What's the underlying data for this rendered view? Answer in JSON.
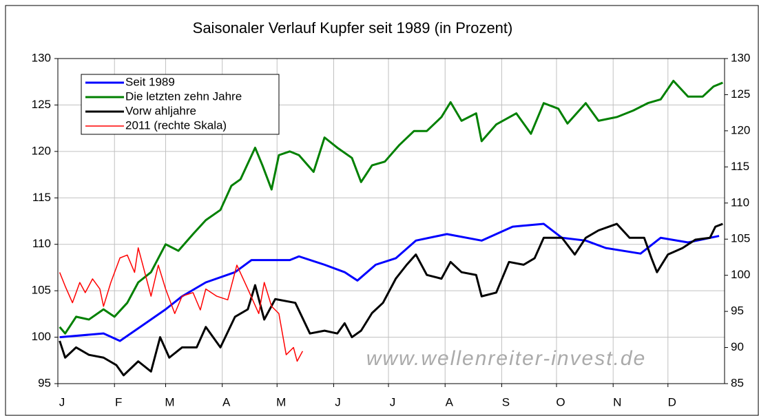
{
  "chart_data": {
    "type": "line",
    "title": "Saisonaler Verlauf Kupfer seit 1989 (in Prozent)",
    "watermark": "www.wellenreiter-invest.de",
    "xlim": [
      0,
      365
    ],
    "xticks": [
      {
        "value": 0,
        "label": "J"
      },
      {
        "value": 31,
        "label": "F"
      },
      {
        "value": 59,
        "label": "M"
      },
      {
        "value": 90,
        "label": "A"
      },
      {
        "value": 120,
        "label": "M"
      },
      {
        "value": 151,
        "label": "J"
      },
      {
        "value": 181,
        "label": "J"
      },
      {
        "value": 212,
        "label": "A"
      },
      {
        "value": 243,
        "label": "S"
      },
      {
        "value": 273,
        "label": "O"
      },
      {
        "value": 304,
        "label": "N"
      },
      {
        "value": 334,
        "label": "D"
      }
    ],
    "ylim": [
      95,
      130
    ],
    "yticks": [
      95,
      100,
      105,
      110,
      115,
      120,
      125,
      130
    ],
    "y2lim": [
      85,
      130
    ],
    "y2ticks": [
      85,
      90,
      95,
      100,
      105,
      110,
      115,
      120,
      125,
      130
    ],
    "grid": true,
    "legend": "upper left",
    "series": [
      {
        "name": "Seit 1989",
        "color": "#0000ff",
        "width": 3,
        "x": [
          1,
          25,
          34,
          48,
          59,
          68,
          81,
          97,
          106,
          127,
          132,
          146,
          157,
          164,
          174,
          185,
          196,
          213,
          232,
          249,
          266,
          276,
          289,
          300,
          319,
          330,
          345,
          362
        ],
        "values": [
          100,
          100.4,
          99.6,
          101.5,
          103,
          104.4,
          105.9,
          107,
          108.3,
          108.3,
          108.7,
          107.8,
          107,
          106.1,
          107.8,
          108.5,
          110.4,
          111.1,
          110.4,
          111.9,
          112.2,
          110.7,
          110.4,
          109.6,
          109,
          110.7,
          110.2,
          110.9
        ]
      },
      {
        "name": "Die letzten zehn Jahre",
        "color": "#008000",
        "width": 3,
        "x": [
          1,
          4,
          10,
          17,
          25,
          31,
          38,
          44,
          51,
          59,
          66,
          74,
          81,
          89,
          95,
          100,
          108,
          112,
          117,
          121,
          127,
          132,
          140,
          146,
          153,
          161,
          166,
          172,
          179,
          187,
          195,
          202,
          210,
          215,
          221,
          229,
          232,
          240,
          251,
          259,
          266,
          274,
          279,
          289,
          296,
          306,
          315,
          323,
          330,
          337,
          345,
          353,
          359,
          364
        ],
        "values": [
          101.1,
          100.4,
          102.2,
          101.9,
          103,
          102.2,
          103.7,
          105.9,
          107,
          110,
          109.3,
          111.1,
          112.6,
          113.7,
          116.3,
          117,
          120.4,
          118.5,
          115.9,
          119.6,
          120,
          119.6,
          117.8,
          121.5,
          120.4,
          119.3,
          116.7,
          118.5,
          118.9,
          120.7,
          122.2,
          122.2,
          123.7,
          125.3,
          123.3,
          124.1,
          121.1,
          122.9,
          124.1,
          121.9,
          125.2,
          124.6,
          123,
          125.2,
          123.3,
          123.7,
          124.4,
          125.2,
          125.6,
          127.6,
          125.9,
          125.9,
          127,
          127.4
        ]
      },
      {
        "name": "Vorw ahljahre",
        "color": "#000000",
        "width": 3,
        "x": [
          1,
          4,
          10,
          17,
          25,
          32,
          36,
          44,
          51,
          56,
          61,
          68,
          76,
          81,
          89,
          97,
          104,
          108,
          113,
          119,
          130,
          138,
          146,
          153,
          157,
          161,
          166,
          172,
          178,
          185,
          191,
          196,
          202,
          210,
          215,
          221,
          229,
          232,
          240,
          247,
          255,
          261,
          266,
          276,
          283,
          289,
          296,
          306,
          313,
          321,
          325,
          328,
          334,
          342,
          349,
          357,
          360,
          364
        ],
        "values": [
          99.6,
          97.8,
          98.9,
          98.1,
          97.8,
          97,
          95.9,
          97.4,
          96.3,
          100,
          97.8,
          98.9,
          98.9,
          101.1,
          98.9,
          102.2,
          103,
          105.6,
          101.9,
          104.1,
          103.7,
          100.4,
          100.7,
          100.4,
          101.5,
          100,
          100.7,
          102.6,
          103.7,
          106.3,
          107.8,
          108.9,
          106.7,
          106.3,
          108.1,
          107,
          106.7,
          104.4,
          104.8,
          108.1,
          107.8,
          108.5,
          110.7,
          110.7,
          108.9,
          110.7,
          111.5,
          112.2,
          110.7,
          110.7,
          108.5,
          107,
          108.9,
          109.6,
          110.5,
          110.7,
          111.9,
          112.2
        ]
      },
      {
        "name": "2011 (rechte Skala)",
        "color": "#ff0000",
        "width": 1.5,
        "axis": "y2",
        "x": [
          1,
          4,
          8,
          12,
          15,
          19,
          23,
          25,
          29,
          34,
          38,
          42,
          44,
          48,
          51,
          55,
          59,
          64,
          68,
          74,
          78,
          81,
          87,
          93,
          98,
          104,
          110,
          113,
          117,
          121,
          125,
          129,
          131,
          134
        ],
        "values": [
          100.4,
          98.5,
          96.2,
          99,
          97.6,
          99.5,
          98.1,
          95.7,
          99,
          102.4,
          102.8,
          100.4,
          103.8,
          100,
          97.1,
          101.4,
          98.1,
          94.7,
          97.1,
          97.6,
          95.2,
          98.1,
          97.1,
          96.6,
          101.4,
          98.1,
          94.7,
          99,
          95.7,
          94.7,
          89,
          90,
          88.1,
          89.5
        ]
      }
    ]
  }
}
